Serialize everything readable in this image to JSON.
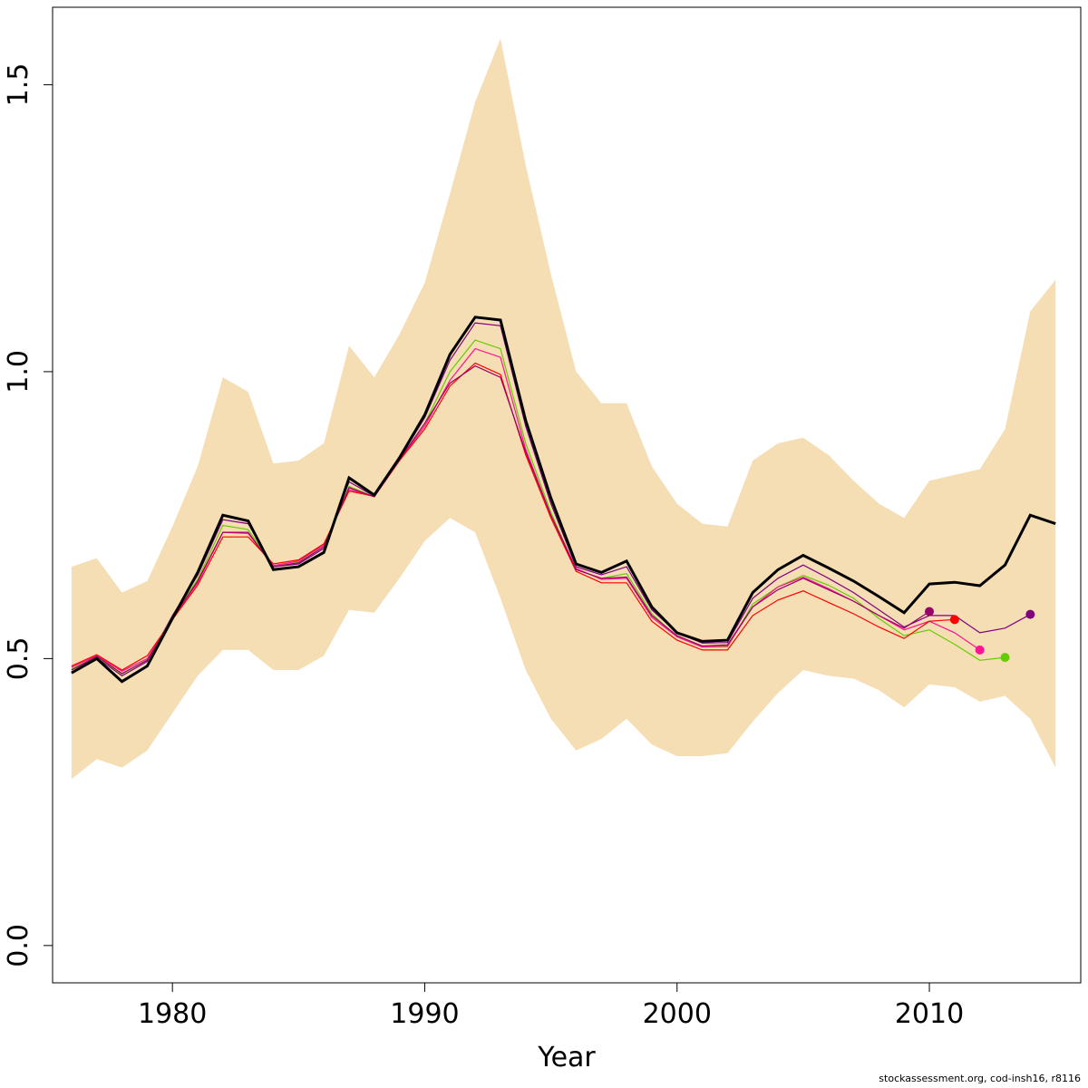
{
  "chart_data": {
    "type": "line",
    "title": "",
    "xlabel": "Year",
    "ylabel": "",
    "xlim": [
      1975.25,
      2016.0
    ],
    "ylim": [
      -0.065,
      1.635
    ],
    "xticks": [
      1980,
      1990,
      2000,
      2010
    ],
    "yticks": [
      0.0,
      0.5,
      1.0,
      1.5
    ],
    "ytick_labels": [
      "0.0",
      "0.5",
      "1.0",
      "1.5"
    ],
    "grid": false,
    "colors": {
      "band": "#f5deb3",
      "main": "#000000"
    },
    "band": {
      "x": [
        1976,
        1977,
        1978,
        1979,
        1980,
        1981,
        1982,
        1983,
        1984,
        1985,
        1986,
        1987,
        1988,
        1989,
        1990,
        1991,
        1992,
        1993,
        1994,
        1995,
        1996,
        1997,
        1998,
        1999,
        2000,
        2001,
        2002,
        2003,
        2004,
        2005,
        2006,
        2007,
        2008,
        2009,
        2010,
        2011,
        2012,
        2013,
        2014,
        2015
      ],
      "upper": [
        0.66,
        0.675,
        0.615,
        0.635,
        0.73,
        0.835,
        0.99,
        0.965,
        0.84,
        0.845,
        0.875,
        1.045,
        0.99,
        1.065,
        1.155,
        1.31,
        1.47,
        1.58,
        1.36,
        1.17,
        1.0,
        0.945,
        0.945,
        0.835,
        0.77,
        0.735,
        0.73,
        0.845,
        0.875,
        0.885,
        0.855,
        0.81,
        0.77,
        0.745,
        0.81,
        0.82,
        0.83,
        0.9,
        1.105,
        1.16
      ],
      "lower": [
        0.29,
        0.325,
        0.31,
        0.34,
        0.405,
        0.47,
        0.515,
        0.515,
        0.48,
        0.48,
        0.505,
        0.585,
        0.58,
        0.64,
        0.705,
        0.745,
        0.72,
        0.605,
        0.48,
        0.395,
        0.34,
        0.36,
        0.395,
        0.35,
        0.33,
        0.33,
        0.335,
        0.39,
        0.44,
        0.48,
        0.47,
        0.465,
        0.445,
        0.415,
        0.455,
        0.45,
        0.425,
        0.435,
        0.395,
        0.31
      ]
    },
    "main_series": {
      "x": [
        1976,
        1977,
        1978,
        1979,
        1980,
        1981,
        1982,
        1983,
        1984,
        1985,
        1986,
        1987,
        1988,
        1989,
        1990,
        1991,
        1992,
        1993,
        1994,
        1995,
        1996,
        1997,
        1998,
        1999,
        2000,
        2001,
        2002,
        2003,
        2004,
        2005,
        2006,
        2007,
        2008,
        2009,
        2010,
        2011,
        2012,
        2013,
        2014,
        2015
      ],
      "values": [
        0.475,
        0.5,
        0.46,
        0.487,
        0.57,
        0.65,
        0.75,
        0.74,
        0.655,
        0.66,
        0.685,
        0.815,
        0.785,
        0.85,
        0.925,
        1.03,
        1.095,
        1.09,
        0.915,
        0.78,
        0.665,
        0.65,
        0.67,
        0.59,
        0.545,
        0.53,
        0.532,
        0.615,
        0.655,
        0.68,
        0.658,
        0.635,
        0.608,
        0.58,
        0.63,
        0.633,
        0.627,
        0.663,
        0.75,
        0.735
      ]
    },
    "retro_series": [
      {
        "color": "#800080",
        "x": [
          1976,
          1977,
          1978,
          1979,
          1980,
          1981,
          1982,
          1983,
          1984,
          1985,
          1986,
          1987,
          1988,
          1989,
          1990,
          1991,
          1992,
          1993,
          1994,
          1995,
          1996,
          1997,
          1998,
          1999,
          2000,
          2001,
          2002,
          2003,
          2004,
          2005,
          2006,
          2007,
          2008,
          2009,
          2010,
          2011,
          2012,
          2013,
          2014
        ],
        "values": [
          0.48,
          0.502,
          0.47,
          0.495,
          0.575,
          0.645,
          0.742,
          0.735,
          0.66,
          0.665,
          0.692,
          0.808,
          0.783,
          0.848,
          0.92,
          1.02,
          1.085,
          1.08,
          0.905,
          0.77,
          0.66,
          0.646,
          0.66,
          0.585,
          0.545,
          0.527,
          0.528,
          0.605,
          0.64,
          0.663,
          0.64,
          0.615,
          0.585,
          0.555,
          0.575,
          0.575,
          0.545,
          0.553,
          0.577
        ],
        "end_point": {
          "x": 2014,
          "y": 0.577
        }
      },
      {
        "color": "#66cc00",
        "x": [
          1976,
          1977,
          1978,
          1979,
          1980,
          1981,
          1982,
          1983,
          1984,
          1985,
          1986,
          1987,
          1988,
          1989,
          1990,
          1991,
          1992,
          1993,
          1994,
          1995,
          1996,
          1997,
          1998,
          1999,
          2000,
          2001,
          2002,
          2003,
          2004,
          2005,
          2006,
          2007,
          2008,
          2009,
          2010,
          2011,
          2012,
          2013
        ],
        "values": [
          0.482,
          0.503,
          0.473,
          0.498,
          0.572,
          0.638,
          0.732,
          0.725,
          0.66,
          0.668,
          0.695,
          0.8,
          0.782,
          0.845,
          0.91,
          1.0,
          1.055,
          1.04,
          0.875,
          0.755,
          0.655,
          0.64,
          0.648,
          0.578,
          0.538,
          0.52,
          0.52,
          0.595,
          0.625,
          0.645,
          0.628,
          0.605,
          0.57,
          0.54,
          0.55,
          0.525,
          0.497,
          0.502
        ],
        "end_point": {
          "x": 2013,
          "y": 0.502
        }
      },
      {
        "color": "#ff1493",
        "x": [
          1976,
          1977,
          1978,
          1979,
          1980,
          1981,
          1982,
          1983,
          1984,
          1985,
          1986,
          1987,
          1988,
          1989,
          1990,
          1991,
          1992,
          1993,
          1994,
          1995,
          1996,
          1997,
          1998,
          1999,
          2000,
          2001,
          2002,
          2003,
          2004,
          2005,
          2006,
          2007,
          2008,
          2009,
          2010,
          2011,
          2012
        ],
        "values": [
          0.485,
          0.505,
          0.478,
          0.5,
          0.57,
          0.632,
          0.72,
          0.718,
          0.662,
          0.67,
          0.698,
          0.795,
          0.782,
          0.845,
          0.905,
          0.985,
          1.04,
          1.025,
          0.865,
          0.75,
          0.657,
          0.638,
          0.64,
          0.572,
          0.538,
          0.52,
          0.522,
          0.59,
          0.625,
          0.642,
          0.622,
          0.6,
          0.575,
          0.55,
          0.565,
          0.545,
          0.515
        ],
        "end_point": {
          "x": 2012,
          "y": 0.515
        }
      },
      {
        "color": "#ff0000",
        "x": [
          1976,
          1977,
          1978,
          1979,
          1980,
          1981,
          1982,
          1983,
          1984,
          1985,
          1986,
          1987,
          1988,
          1989,
          1990,
          1991,
          1992,
          1993,
          1994,
          1995,
          1996,
          1997,
          1998,
          1999,
          2000,
          2001,
          2002,
          2003,
          2004,
          2005,
          2006,
          2007,
          2008,
          2009,
          2010,
          2011
        ],
        "values": [
          0.487,
          0.507,
          0.48,
          0.505,
          0.568,
          0.628,
          0.712,
          0.712,
          0.665,
          0.672,
          0.7,
          0.792,
          0.783,
          0.845,
          0.9,
          0.975,
          1.015,
          0.995,
          0.855,
          0.745,
          0.652,
          0.632,
          0.632,
          0.565,
          0.532,
          0.515,
          0.515,
          0.575,
          0.602,
          0.618,
          0.598,
          0.578,
          0.555,
          0.535,
          0.565,
          0.568
        ],
        "end_point": {
          "x": 2011,
          "y": 0.568
        }
      },
      {
        "color": "#990066",
        "x": [
          1976,
          1977,
          1978,
          1979,
          1980,
          1981,
          1982,
          1983,
          1984,
          1985,
          1986,
          1987,
          1988,
          1989,
          1990,
          1991,
          1992,
          1993,
          1994,
          1995,
          1996,
          1997,
          1998,
          1999,
          2000,
          2001,
          2002,
          2003,
          2004,
          2005,
          2006,
          2007,
          2008,
          2009,
          2010
        ],
        "values": [
          0.48,
          0.504,
          0.474,
          0.497,
          0.57,
          0.635,
          0.72,
          0.72,
          0.66,
          0.667,
          0.695,
          0.798,
          0.782,
          0.847,
          0.91,
          0.98,
          1.01,
          0.99,
          0.86,
          0.75,
          0.655,
          0.64,
          0.642,
          0.575,
          0.54,
          0.522,
          0.524,
          0.59,
          0.62,
          0.64,
          0.62,
          0.6,
          0.575,
          0.553,
          0.582
        ],
        "end_point": {
          "x": 2010,
          "y": 0.582
        }
      }
    ]
  },
  "footer": "stockassessment.org, cod-insh16, r8116"
}
